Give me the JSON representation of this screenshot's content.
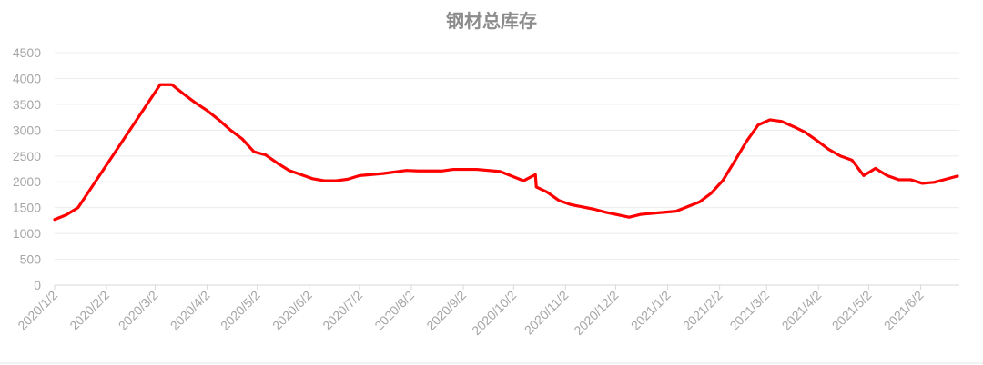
{
  "chart_data": {
    "type": "line",
    "title": "钢材总库存",
    "xlabel": "",
    "ylabel": "",
    "ylim": [
      0,
      4500
    ],
    "yticks": [
      "0",
      "500",
      "1000",
      "1500",
      "2000",
      "2500",
      "3000",
      "3500",
      "4000",
      "4500"
    ],
    "xticks": [
      "2020/1/2",
      "2020/2/2",
      "2020/3/2",
      "2020/4/2",
      "2020/5/2",
      "2020/6/2",
      "2020/7/2",
      "2020/8/2",
      "2020/9/2",
      "2020/10/2",
      "2020/11/2",
      "2020/12/2",
      "2021/1/2",
      "2021/2/2",
      "2021/3/2",
      "2021/4/2",
      "2021/5/2",
      "2021/6/2"
    ],
    "xlim": [
      "2020/1/2",
      "2021/6/24"
    ],
    "grid": true,
    "legend": "none",
    "line_color": "#ff0000",
    "series": [
      {
        "points": [
          [
            "2020/1/2",
            1270
          ],
          [
            "2020/1/9",
            1360
          ],
          [
            "2020/1/16",
            1500
          ],
          [
            "2020/3/5",
            3880
          ],
          [
            "2020/3/12",
            3880
          ],
          [
            "2020/3/19",
            3700
          ],
          [
            "2020/3/26",
            3530
          ],
          [
            "2020/4/2",
            3380
          ],
          [
            "2020/4/9",
            3200
          ],
          [
            "2020/4/16",
            3000
          ],
          [
            "2020/4/23",
            2830
          ],
          [
            "2020/4/30",
            2580
          ],
          [
            "2020/5/7",
            2520
          ],
          [
            "2020/5/14",
            2360
          ],
          [
            "2020/5/21",
            2220
          ],
          [
            "2020/5/28",
            2140
          ],
          [
            "2020/6/4",
            2060
          ],
          [
            "2020/6/11",
            2020
          ],
          [
            "2020/6/18",
            2020
          ],
          [
            "2020/6/25",
            2050
          ],
          [
            "2020/7/2",
            2120
          ],
          [
            "2020/7/16",
            2160
          ],
          [
            "2020/7/30",
            2220
          ],
          [
            "2020/8/6",
            2210
          ],
          [
            "2020/8/20",
            2210
          ],
          [
            "2020/8/27",
            2240
          ],
          [
            "2020/9/10",
            2240
          ],
          [
            "2020/9/24",
            2200
          ],
          [
            "2020/10/8",
            2020
          ],
          [
            "2020/10/15",
            2140
          ],
          [
            "2020/10/15",
            1900
          ],
          [
            "2020/10/22",
            1800
          ],
          [
            "2020/10/29",
            1640
          ],
          [
            "2020/11/5",
            1560
          ],
          [
            "2020/11/19",
            1470
          ],
          [
            "2020/11/26",
            1410
          ],
          [
            "2020/12/10",
            1315
          ],
          [
            "2020/12/17",
            1370
          ],
          [
            "2021/1/7",
            1430
          ],
          [
            "2021/1/14",
            1520
          ],
          [
            "2021/1/21",
            1610
          ],
          [
            "2021/1/28",
            1780
          ],
          [
            "2021/2/4",
            2030
          ],
          [
            "2021/2/11",
            2400
          ],
          [
            "2021/2/18",
            2780
          ],
          [
            "2021/2/25",
            3100
          ],
          [
            "2021/3/4",
            3200
          ],
          [
            "2021/3/11",
            3170
          ],
          [
            "2021/3/18",
            3070
          ],
          [
            "2021/3/25",
            2960
          ],
          [
            "2021/4/1",
            2800
          ],
          [
            "2021/4/8",
            2630
          ],
          [
            "2021/4/15",
            2500
          ],
          [
            "2021/4/22",
            2420
          ],
          [
            "2021/4/29",
            2120
          ],
          [
            "2021/5/6",
            2260
          ],
          [
            "2021/5/13",
            2120
          ],
          [
            "2021/5/20",
            2040
          ],
          [
            "2021/5/27",
            2040
          ],
          [
            "2021/6/3",
            1970
          ],
          [
            "2021/6/10",
            1990
          ],
          [
            "2021/6/17",
            2050
          ],
          [
            "2021/6/24",
            2110
          ]
        ]
      }
    ]
  }
}
